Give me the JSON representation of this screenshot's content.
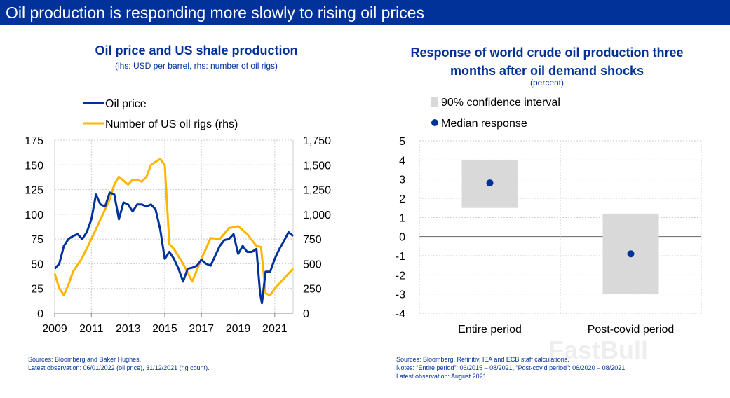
{
  "header": {
    "title": "Oil production is responding more slowly to rising oil prices"
  },
  "chart_data": [
    {
      "type": "line",
      "title": "Oil price and US shale production",
      "subtitle": "(lhs: USD per barrel, rhs: number of oil rigs)",
      "ylim": [
        0,
        175
      ],
      "y2lim": [
        0,
        1750
      ],
      "yticks": [
        "0",
        "25",
        "50",
        "75",
        "100",
        "125",
        "150",
        "175"
      ],
      "y2ticks": [
        "0",
        "250",
        "500",
        "750",
        "1,000",
        "1,250",
        "1,500",
        "1,750"
      ],
      "xticks": [
        "2009",
        "2011",
        "2013",
        "2015",
        "2017",
        "2019",
        "2021"
      ],
      "grid": true,
      "legend": "top",
      "series": [
        {
          "name": "Oil price",
          "axis": "left",
          "color": "#003299",
          "x": [
            2009,
            2009.25,
            2009.5,
            2009.75,
            2010,
            2010.25,
            2010.5,
            2010.75,
            2011,
            2011.25,
            2011.5,
            2011.75,
            2012,
            2012.25,
            2012.5,
            2012.75,
            2013,
            2013.25,
            2013.5,
            2013.75,
            2014,
            2014.25,
            2014.5,
            2014.75,
            2015,
            2015.25,
            2015.5,
            2015.75,
            2016,
            2016.25,
            2016.5,
            2016.75,
            2017,
            2017.25,
            2017.5,
            2017.75,
            2018,
            2018.25,
            2018.5,
            2018.75,
            2019,
            2019.25,
            2019.5,
            2019.75,
            2020,
            2020.2,
            2020.3,
            2020.5,
            2020.75,
            2021,
            2021.25,
            2021.5,
            2021.75,
            2022
          ],
          "y": [
            45,
            50,
            68,
            75,
            78,
            80,
            75,
            82,
            95,
            120,
            110,
            108,
            122,
            120,
            95,
            112,
            110,
            103,
            110,
            110,
            108,
            110,
            105,
            85,
            55,
            62,
            55,
            45,
            32,
            45,
            46,
            48,
            54,
            50,
            48,
            58,
            68,
            74,
            75,
            80,
            60,
            68,
            62,
            62,
            65,
            20,
            10,
            42,
            42,
            55,
            65,
            73,
            82,
            78
          ]
        },
        {
          "name": "Number of US oil rigs (rhs)",
          "axis": "right",
          "color": "#ffb400",
          "x": [
            2009,
            2009.25,
            2009.5,
            2009.75,
            2010,
            2010.5,
            2011,
            2011.5,
            2012,
            2012.25,
            2012.5,
            2013,
            2013.25,
            2013.5,
            2013.75,
            2014,
            2014.25,
            2014.75,
            2015,
            2015.25,
            2015.5,
            2016,
            2016.5,
            2017,
            2017.5,
            2018,
            2018.5,
            2019,
            2019.5,
            2020,
            2020.25,
            2020.5,
            2020.75,
            2021,
            2021.5,
            2022
          ],
          "y": [
            400,
            250,
            180,
            290,
            420,
            560,
            750,
            950,
            1150,
            1300,
            1380,
            1300,
            1350,
            1350,
            1330,
            1380,
            1500,
            1560,
            1500,
            700,
            650,
            500,
            320,
            550,
            760,
            750,
            860,
            880,
            800,
            680,
            670,
            200,
            180,
            250,
            350,
            450
          ]
        }
      ]
    },
    {
      "type": "scatter",
      "title": "Response of world crude oil production three months after oil demand shocks",
      "subtitle": "(percent)",
      "ylim": [
        -4,
        5
      ],
      "yticks": [
        "5",
        "4",
        "3",
        "2",
        "1",
        "0",
        "-1",
        "-2",
        "-3",
        "-4"
      ],
      "grid": true,
      "legend": "top",
      "categories": [
        "Entire period",
        "Post-covid period"
      ],
      "series": [
        {
          "name": "90% confidence interval",
          "color": "#d9d9d9",
          "low": [
            1.5,
            -3
          ],
          "high": [
            4,
            1.2
          ]
        },
        {
          "name": "Median response",
          "color": "#003299",
          "values": [
            2.8,
            -0.9
          ]
        }
      ]
    }
  ],
  "notes": {
    "left": [
      "Sources: Bloomberg and Baker Hughes.",
      "Latest observation: 06/01/2022 (oil price), 31/12/2021 (rig count)."
    ],
    "right": [
      "Sources: Bloomberg, Refinitiv, IEA and ECB staff calculations.",
      "Notes: “Entire period”: 06/2015 – 08/2021, “Post-covid period”: 06/2020 – 08/2021.",
      "Latest observation: August 2021."
    ]
  },
  "watermark": "FastBull"
}
